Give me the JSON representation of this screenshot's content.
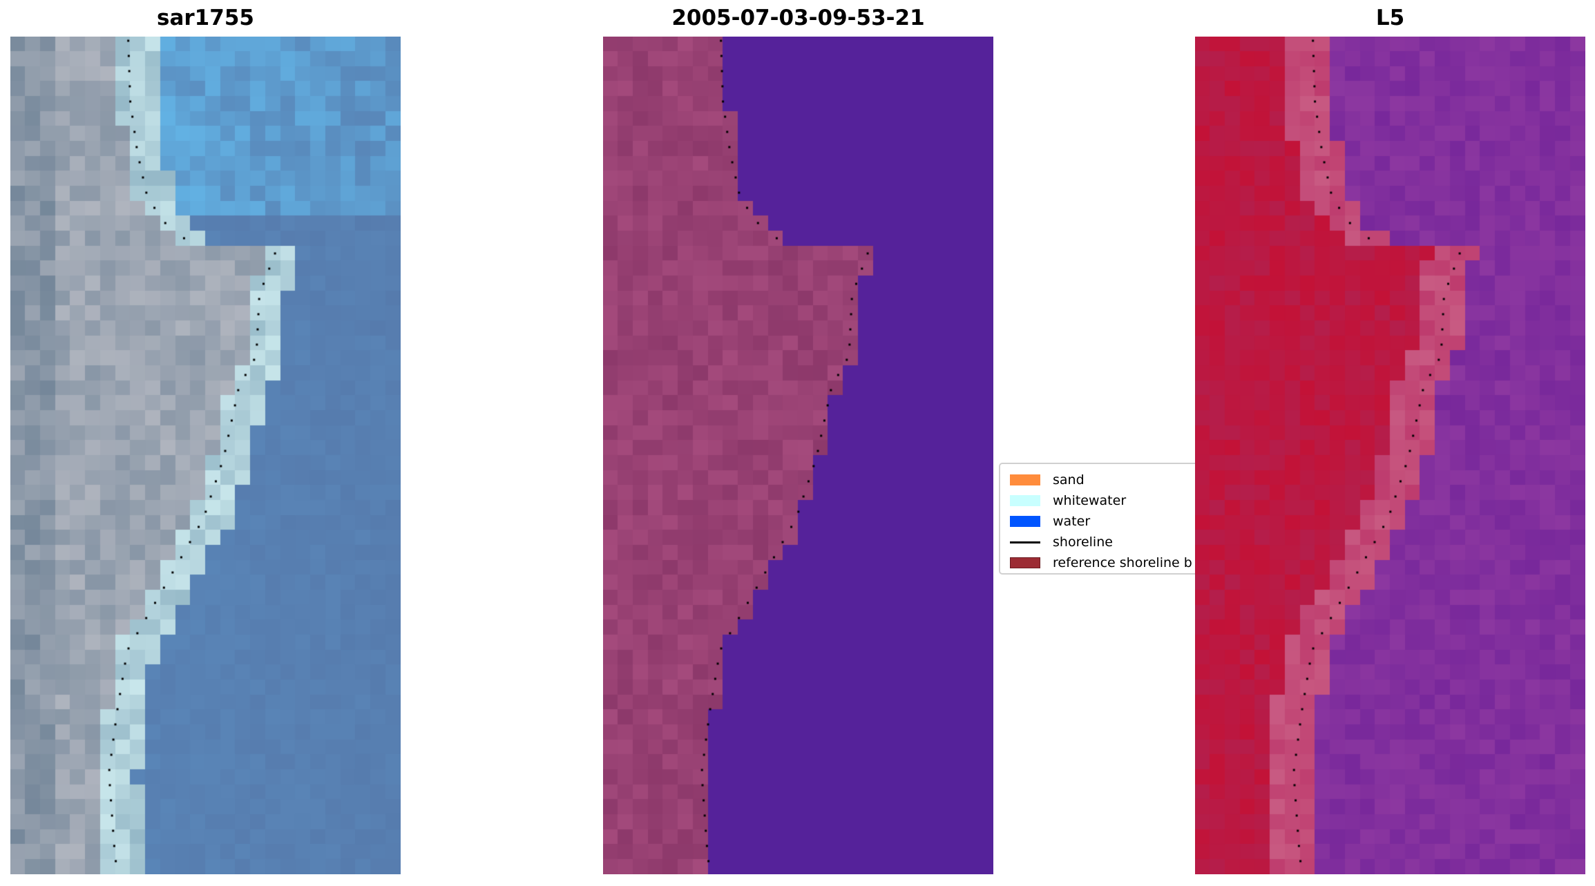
{
  "panels": [
    {
      "title": "sar1755",
      "kind": "rgb-image"
    },
    {
      "title": "2005-07-03-09-53-21",
      "kind": "classified-image"
    },
    {
      "title": "L5",
      "kind": "index-image"
    }
  ],
  "legend": {
    "items": [
      {
        "label": "sand",
        "color": "#ff8c3c",
        "type": "patch"
      },
      {
        "label": "whitewater",
        "color": "#c8ffff",
        "type": "patch"
      },
      {
        "label": "water",
        "color": "#0055ff",
        "type": "patch"
      },
      {
        "label": "shoreline",
        "color": "#000000",
        "type": "line"
      },
      {
        "label": "reference shoreline b",
        "color": "#9c2c34",
        "type": "patch"
      }
    ]
  },
  "colors": {
    "land_class": "#a24a7c",
    "water_class": "#55229a",
    "index_high": "#c0103a",
    "index_low": "#8a3aa0"
  }
}
